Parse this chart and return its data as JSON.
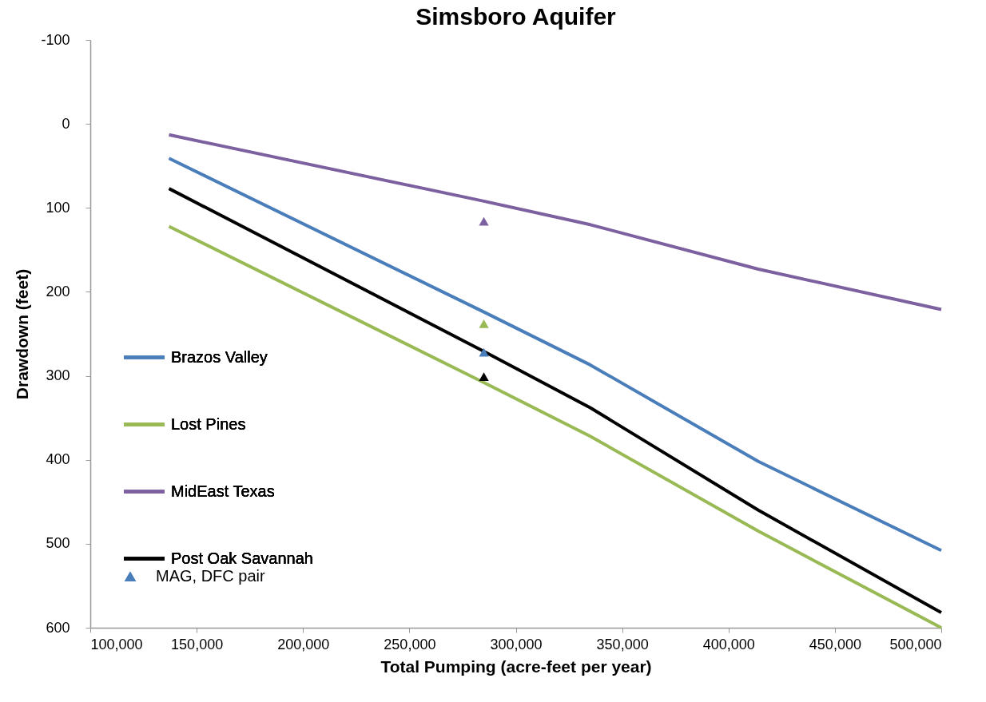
{
  "chart_data": {
    "type": "line",
    "title": "Simsboro Aquifer",
    "xlabel": "Total Pumping  (acre-feet per year)",
    "ylabel": "Drawdown (feet)",
    "xlim": [
      100000,
      500000
    ],
    "xticks": [
      {
        "value": 100000,
        "label": "100,000"
      },
      {
        "value": 150000,
        "label": "150,000"
      },
      {
        "value": 200000,
        "label": "200,000"
      },
      {
        "value": 250000,
        "label": "250,000"
      },
      {
        "value": 300000,
        "label": "300,000"
      },
      {
        "value": 350000,
        "label": "350,000"
      },
      {
        "value": 400000,
        "label": "400,000"
      },
      {
        "value": 450000,
        "label": "450,000"
      },
      {
        "value": 500000,
        "label": "500,000"
      }
    ],
    "ylim": [
      600,
      -100
    ],
    "yticks": [
      -100,
      0,
      100,
      200,
      300,
      400,
      500,
      600
    ],
    "grid": false,
    "legend": "left",
    "line_style": "solid",
    "series": [
      {
        "name": "Brazos Valley",
        "color": "#4a7ebb",
        "x": [
          137000,
          285000,
          335000,
          414000,
          500000
        ],
        "values": [
          41,
          224,
          287,
          402,
          508
        ]
      },
      {
        "name": "Lost Pines",
        "color": "#98b954",
        "x": [
          137000,
          285000,
          335000,
          414000,
          500000
        ],
        "values": [
          122,
          308,
          372,
          485,
          600
        ]
      },
      {
        "name": "MidEast Texas",
        "color": "#7d60a0",
        "x": [
          137000,
          285000,
          335000,
          414000,
          500000
        ],
        "values": [
          13,
          92,
          120,
          173,
          221
        ]
      },
      {
        "name": "Post Oak Savannah",
        "color": "#000000",
        "x": [
          137000,
          285000,
          335000,
          414000,
          500000
        ],
        "values": [
          77,
          271,
          338,
          460,
          582
        ]
      },
      {
        "name": "MAG, DFC pair",
        "type": "scatter",
        "marker": "triangle",
        "color": "#4a7ebb",
        "colors": [
          "#7d60a0",
          "#98b954",
          "#4a7ebb",
          "#000000"
        ],
        "x": [
          285000,
          285000,
          285000,
          285000
        ],
        "values": [
          116,
          238,
          272,
          301
        ]
      }
    ]
  }
}
